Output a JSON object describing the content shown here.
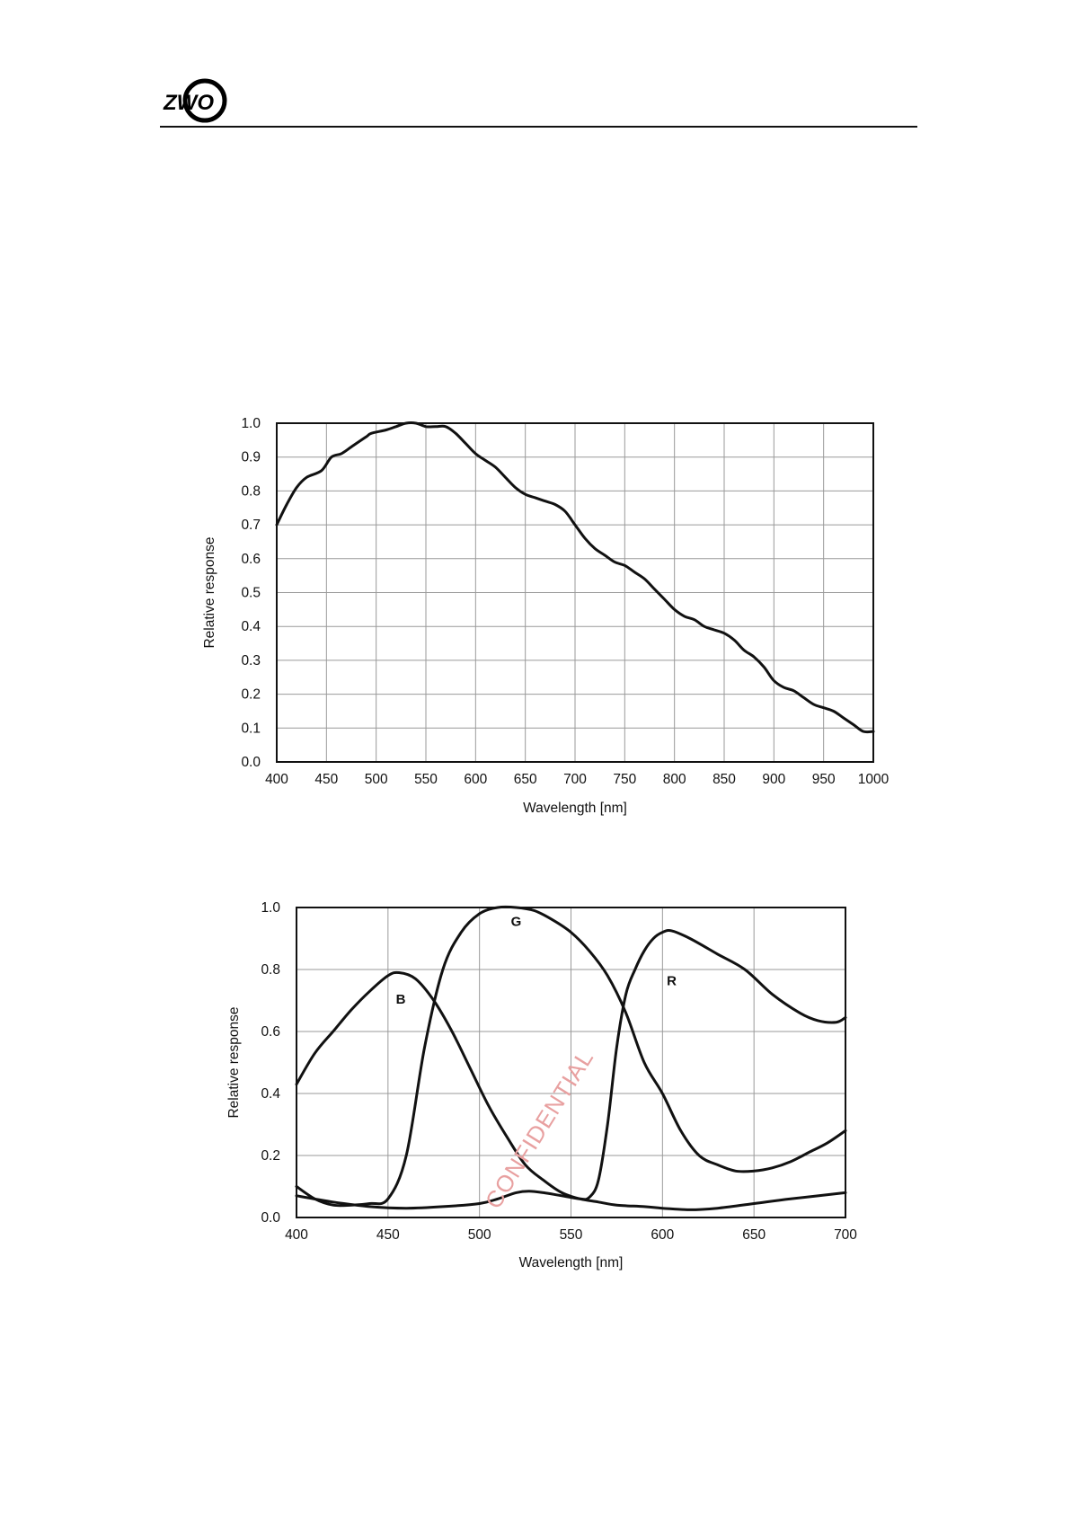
{
  "header": {
    "logo_text": "ZWO"
  },
  "watermark": "CONFIDENTIAL",
  "chart_data": [
    {
      "type": "line",
      "title": "",
      "xlabel": "Wavelength [nm]",
      "ylabel": "Relative response",
      "xlim": [
        400,
        1000
      ],
      "ylim": [
        0,
        1
      ],
      "xticks": [
        "400",
        "450",
        "500",
        "550",
        "600",
        "650",
        "700",
        "750",
        "800",
        "850",
        "900",
        "950",
        "1000"
      ],
      "yticks": [
        "0.0",
        "0.1",
        "0.2",
        "0.3",
        "0.4",
        "0.5",
        "0.6",
        "0.7",
        "0.8",
        "0.9",
        "1.0"
      ],
      "grid": true,
      "series": [
        {
          "x": [
            400,
            410,
            420,
            430,
            445,
            455,
            465,
            475,
            490,
            495,
            510,
            520,
            530,
            540,
            550,
            560,
            570,
            580,
            590,
            600,
            610,
            620,
            630,
            640,
            650,
            660,
            670,
            680,
            690,
            700,
            710,
            720,
            730,
            740,
            750,
            760,
            770,
            780,
            790,
            800,
            810,
            820,
            830,
            840,
            850,
            860,
            870,
            880,
            890,
            900,
            910,
            920,
            930,
            940,
            950,
            960,
            970,
            980,
            990,
            1000
          ],
          "y": [
            0.7,
            0.76,
            0.81,
            0.84,
            0.86,
            0.9,
            0.91,
            0.93,
            0.96,
            0.97,
            0.98,
            0.99,
            1.0,
            1.0,
            0.99,
            0.99,
            0.99,
            0.97,
            0.94,
            0.91,
            0.89,
            0.87,
            0.84,
            0.81,
            0.79,
            0.78,
            0.77,
            0.76,
            0.74,
            0.7,
            0.66,
            0.63,
            0.61,
            0.59,
            0.58,
            0.56,
            0.54,
            0.51,
            0.48,
            0.45,
            0.43,
            0.42,
            0.4,
            0.39,
            0.38,
            0.36,
            0.33,
            0.31,
            0.28,
            0.24,
            0.22,
            0.21,
            0.19,
            0.17,
            0.16,
            0.15,
            0.13,
            0.11,
            0.09,
            0.09
          ]
        }
      ]
    },
    {
      "type": "line",
      "title": "",
      "xlabel": "Wavelength [nm]",
      "ylabel": "Relative response",
      "xlim": [
        400,
        700
      ],
      "ylim": [
        0,
        1
      ],
      "xticks": [
        "400",
        "450",
        "500",
        "550",
        "600",
        "650",
        "700"
      ],
      "yticks": [
        "0.0",
        "0.2",
        "0.4",
        "0.6",
        "0.8",
        "1.0"
      ],
      "grid": true,
      "series": [
        {
          "name": "B",
          "x": [
            400,
            410,
            420,
            430,
            440,
            450,
            456,
            465,
            475,
            485,
            495,
            505,
            515,
            525,
            535,
            545,
            555,
            565,
            575,
            590,
            600,
            615,
            630,
            650,
            670,
            700
          ],
          "y": [
            0.43,
            0.53,
            0.6,
            0.67,
            0.73,
            0.78,
            0.79,
            0.77,
            0.7,
            0.6,
            0.48,
            0.36,
            0.26,
            0.17,
            0.12,
            0.08,
            0.06,
            0.05,
            0.04,
            0.035,
            0.03,
            0.025,
            0.03,
            0.045,
            0.06,
            0.08
          ]
        },
        {
          "name": "G",
          "x": [
            400,
            410,
            420,
            430,
            440,
            450,
            460,
            470,
            480,
            490,
            500,
            510,
            520,
            530,
            540,
            550,
            560,
            570,
            580,
            590,
            600,
            610,
            620,
            630,
            640,
            650,
            660,
            670,
            680,
            690,
            700
          ],
          "y": [
            0.1,
            0.06,
            0.04,
            0.04,
            0.045,
            0.06,
            0.2,
            0.55,
            0.8,
            0.92,
            0.98,
            1.0,
            1.0,
            0.99,
            0.96,
            0.92,
            0.86,
            0.78,
            0.66,
            0.5,
            0.4,
            0.28,
            0.2,
            0.17,
            0.15,
            0.15,
            0.16,
            0.18,
            0.21,
            0.24,
            0.28
          ]
        },
        {
          "name": "R",
          "x": [
            400,
            420,
            440,
            460,
            480,
            500,
            510,
            520,
            527,
            535,
            545,
            555,
            560,
            565,
            570,
            575,
            580,
            585,
            590,
            595,
            600,
            605,
            615,
            630,
            645,
            660,
            675,
            685,
            695,
            700
          ],
          "y": [
            0.07,
            0.05,
            0.035,
            0.03,
            0.035,
            0.045,
            0.06,
            0.08,
            0.085,
            0.08,
            0.07,
            0.06,
            0.065,
            0.12,
            0.3,
            0.55,
            0.72,
            0.8,
            0.86,
            0.9,
            0.92,
            0.925,
            0.9,
            0.85,
            0.8,
            0.72,
            0.66,
            0.635,
            0.63,
            0.645
          ]
        }
      ],
      "annotations": [
        {
          "text": "B",
          "x": 457,
          "y": 0.69
        },
        {
          "text": "G",
          "x": 520,
          "y": 0.94
        },
        {
          "text": "R",
          "x": 605,
          "y": 0.75
        }
      ]
    }
  ]
}
